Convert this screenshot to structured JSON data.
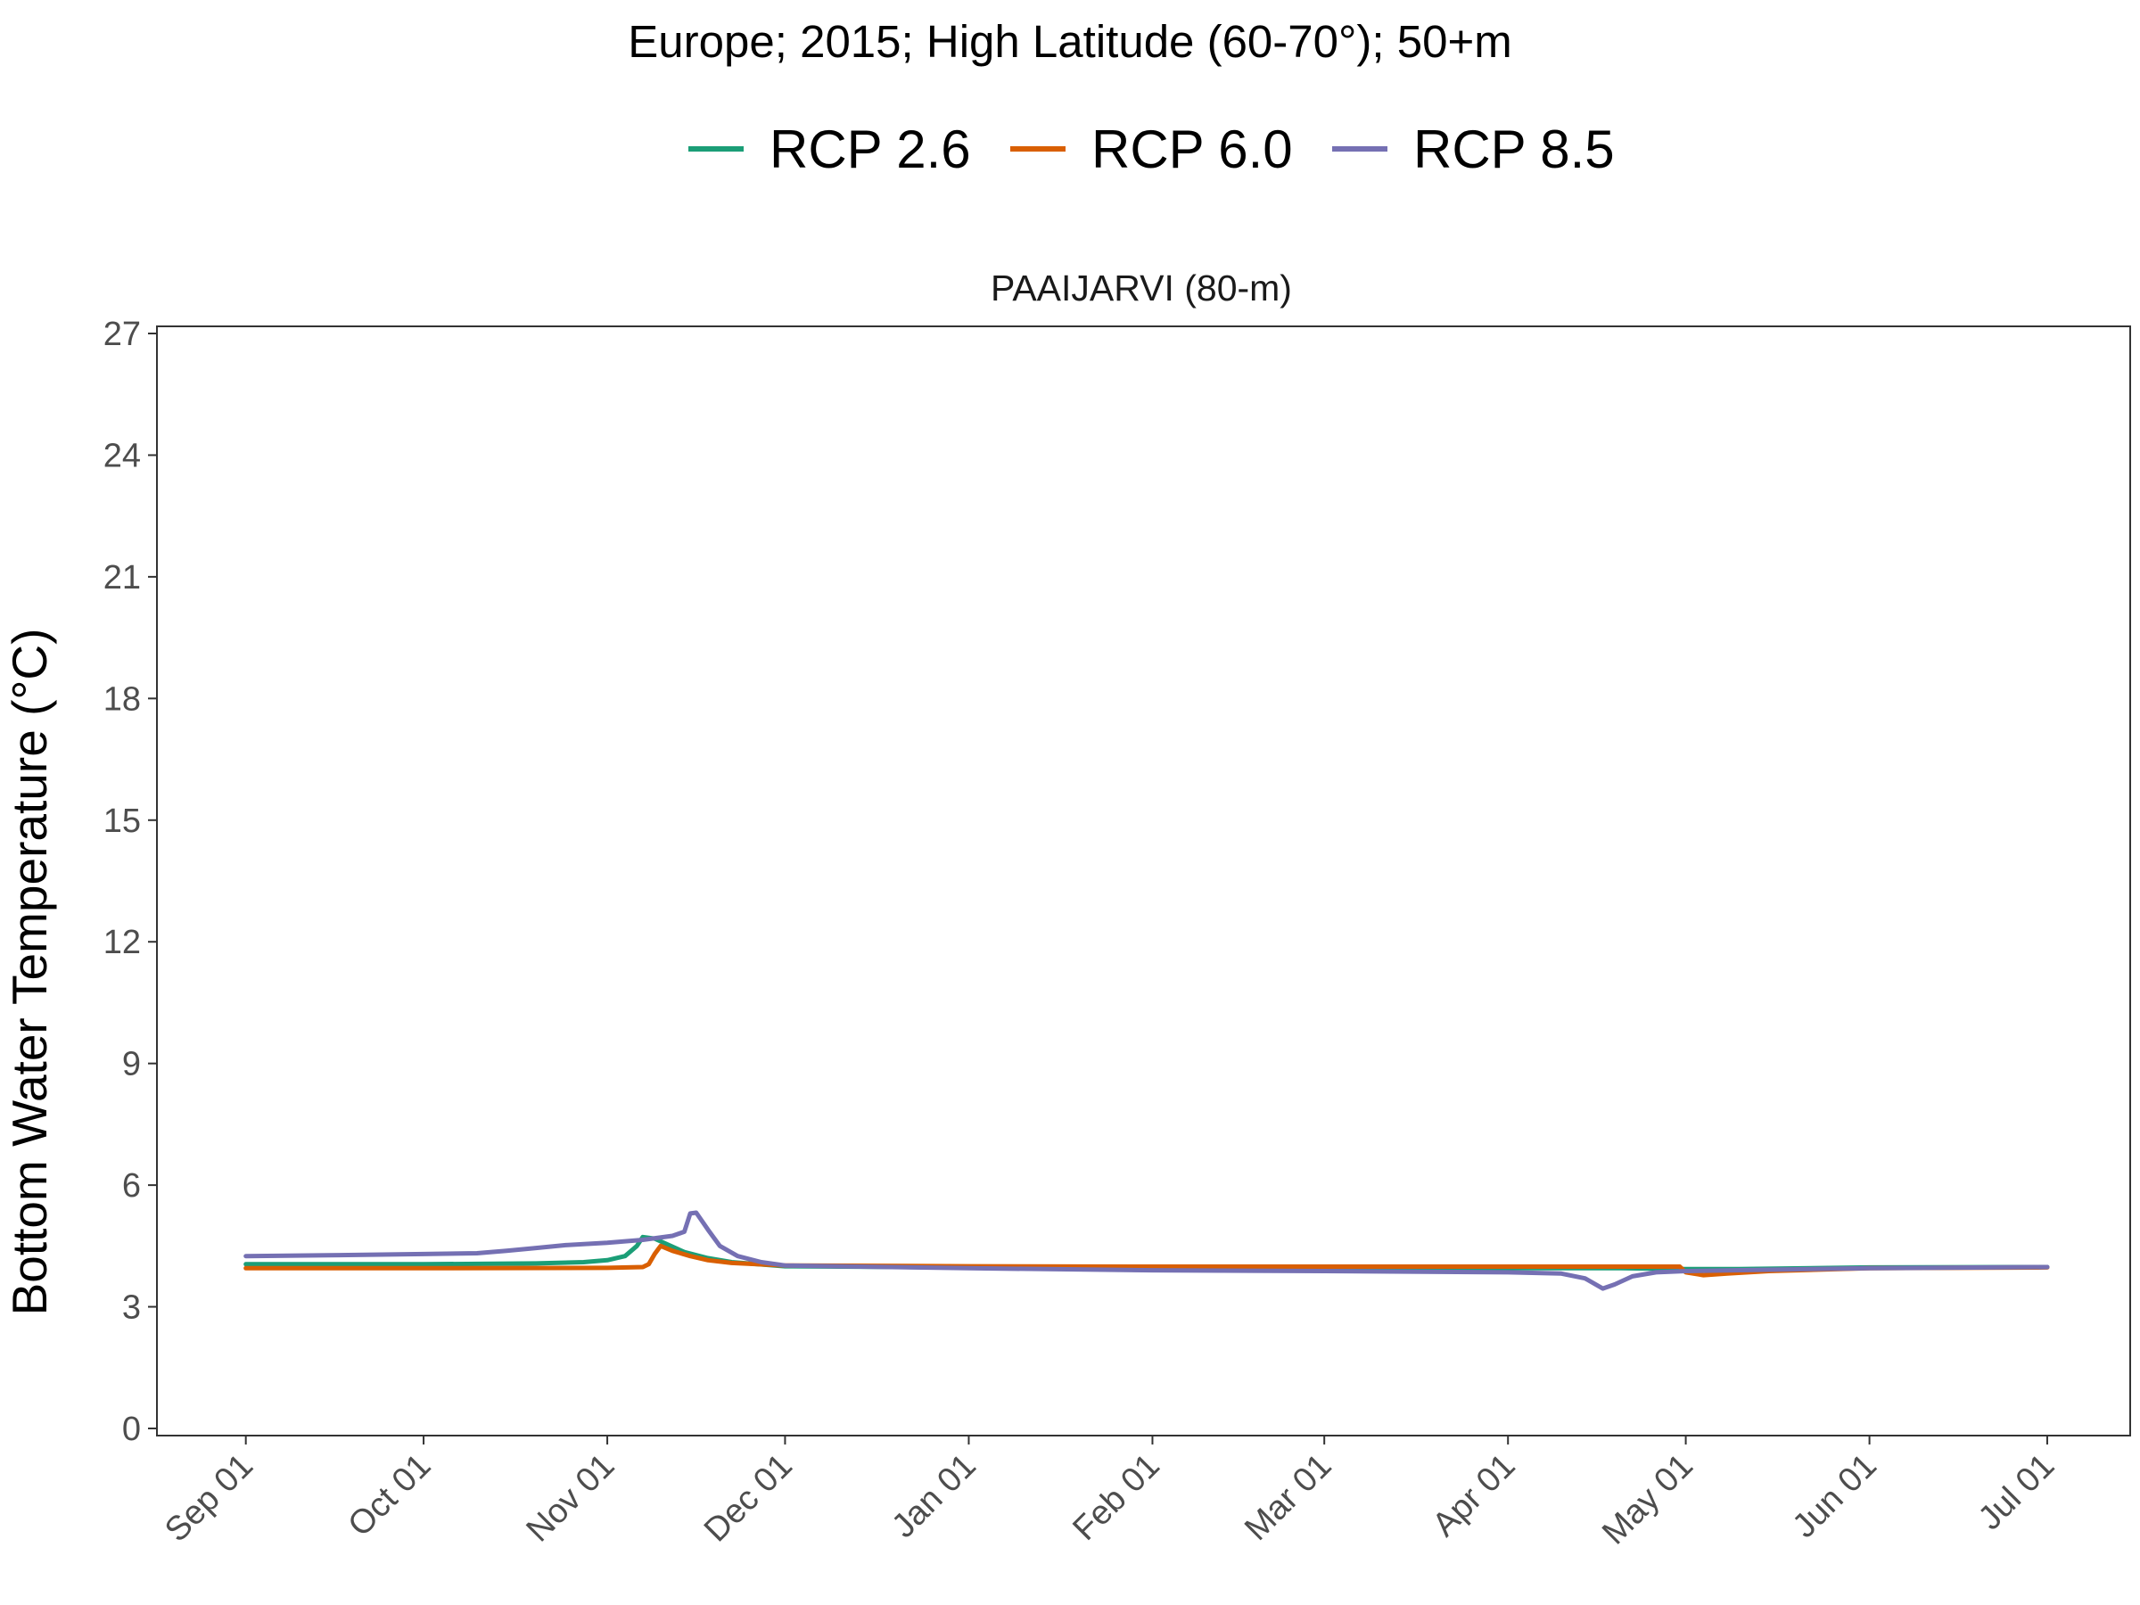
{
  "chart_data": {
    "type": "line",
    "title": "Europe;  2015;  High Latitude (60-70°);  50+m",
    "panel_title": "PAAIJARVI (80-m)",
    "xlabel": "",
    "ylabel": "Bottom Water Temperature (°C)",
    "x_ticks": [
      {
        "label": "Sep 01",
        "date": "2015-09-01"
      },
      {
        "label": "Oct 01",
        "date": "2015-10-01"
      },
      {
        "label": "Nov 01",
        "date": "2015-11-01"
      },
      {
        "label": "Dec 01",
        "date": "2015-12-01"
      },
      {
        "label": "Jan 01",
        "date": "2016-01-01"
      },
      {
        "label": "Feb 01",
        "date": "2016-02-01"
      },
      {
        "label": "Mar 01",
        "date": "2016-03-01"
      },
      {
        "label": "Apr 01",
        "date": "2016-04-01"
      },
      {
        "label": "May 01",
        "date": "2016-05-01"
      },
      {
        "label": "Jun 01",
        "date": "2016-06-01"
      },
      {
        "label": "Jul 01",
        "date": "2016-07-01"
      }
    ],
    "xlim": [
      "2015-08-17",
      "2016-07-15"
    ],
    "ylim": [
      0,
      27
    ],
    "y_ticks": [
      "0",
      "3",
      "6",
      "9",
      "12",
      "15",
      "18",
      "21",
      "24",
      "27"
    ],
    "grid": false,
    "legend_position": "top",
    "series": [
      {
        "name": "RCP 2.6",
        "color": "#1B9E77",
        "points": [
          [
            "2015-09-01",
            4.05
          ],
          [
            "2015-10-01",
            4.05
          ],
          [
            "2015-10-20",
            4.07
          ],
          [
            "2015-10-28",
            4.1
          ],
          [
            "2015-11-01",
            4.15
          ],
          [
            "2015-11-04",
            4.25
          ],
          [
            "2015-11-06",
            4.5
          ],
          [
            "2015-11-07",
            4.72
          ],
          [
            "2015-11-09",
            4.68
          ],
          [
            "2015-11-11",
            4.55
          ],
          [
            "2015-11-14",
            4.35
          ],
          [
            "2015-11-18",
            4.2
          ],
          [
            "2015-11-22",
            4.1
          ],
          [
            "2015-12-01",
            4.0
          ],
          [
            "2016-01-01",
            3.97
          ],
          [
            "2016-02-01",
            3.95
          ],
          [
            "2016-03-01",
            3.95
          ],
          [
            "2016-04-01",
            3.95
          ],
          [
            "2016-04-20",
            3.95
          ],
          [
            "2016-05-01",
            3.93
          ],
          [
            "2016-05-10",
            3.93
          ],
          [
            "2016-06-01",
            3.97
          ],
          [
            "2016-07-01",
            3.98
          ]
        ]
      },
      {
        "name": "RCP 6.0",
        "color": "#D95F02",
        "points": [
          [
            "2015-09-01",
            3.95
          ],
          [
            "2015-10-01",
            3.95
          ],
          [
            "2015-11-01",
            3.96
          ],
          [
            "2015-11-07",
            3.98
          ],
          [
            "2015-11-08",
            4.05
          ],
          [
            "2015-11-09",
            4.3
          ],
          [
            "2015-11-10",
            4.5
          ],
          [
            "2015-11-12",
            4.38
          ],
          [
            "2015-11-15",
            4.25
          ],
          [
            "2015-11-18",
            4.15
          ],
          [
            "2015-11-22",
            4.08
          ],
          [
            "2015-12-01",
            4.02
          ],
          [
            "2016-01-01",
            4.0
          ],
          [
            "2016-02-01",
            3.99
          ],
          [
            "2016-03-01",
            3.99
          ],
          [
            "2016-04-01",
            3.99
          ],
          [
            "2016-04-30",
            3.99
          ],
          [
            "2016-05-01",
            3.85
          ],
          [
            "2016-05-04",
            3.78
          ],
          [
            "2016-05-08",
            3.82
          ],
          [
            "2016-05-15",
            3.88
          ],
          [
            "2016-06-01",
            3.95
          ],
          [
            "2016-07-01",
            3.97
          ]
        ]
      },
      {
        "name": "RCP 8.5",
        "color": "#7570B3",
        "points": [
          [
            "2015-09-01",
            4.25
          ],
          [
            "2015-09-15",
            4.27
          ],
          [
            "2015-10-01",
            4.3
          ],
          [
            "2015-10-10",
            4.32
          ],
          [
            "2015-10-15",
            4.38
          ],
          [
            "2015-10-20",
            4.45
          ],
          [
            "2015-10-25",
            4.52
          ],
          [
            "2015-11-01",
            4.58
          ],
          [
            "2015-11-07",
            4.65
          ],
          [
            "2015-11-12",
            4.75
          ],
          [
            "2015-11-14",
            4.85
          ],
          [
            "2015-11-15",
            5.3
          ],
          [
            "2015-11-16",
            5.32
          ],
          [
            "2015-11-18",
            4.9
          ],
          [
            "2015-11-20",
            4.5
          ],
          [
            "2015-11-23",
            4.25
          ],
          [
            "2015-11-27",
            4.1
          ],
          [
            "2015-12-01",
            4.02
          ],
          [
            "2016-01-01",
            3.95
          ],
          [
            "2016-02-01",
            3.9
          ],
          [
            "2016-03-01",
            3.88
          ],
          [
            "2016-04-01",
            3.85
          ],
          [
            "2016-04-10",
            3.82
          ],
          [
            "2016-04-14",
            3.7
          ],
          [
            "2016-04-17",
            3.45
          ],
          [
            "2016-04-19",
            3.55
          ],
          [
            "2016-04-22",
            3.75
          ],
          [
            "2016-04-26",
            3.85
          ],
          [
            "2016-05-01",
            3.88
          ],
          [
            "2016-06-01",
            3.95
          ],
          [
            "2016-07-01",
            3.98
          ]
        ]
      }
    ]
  }
}
